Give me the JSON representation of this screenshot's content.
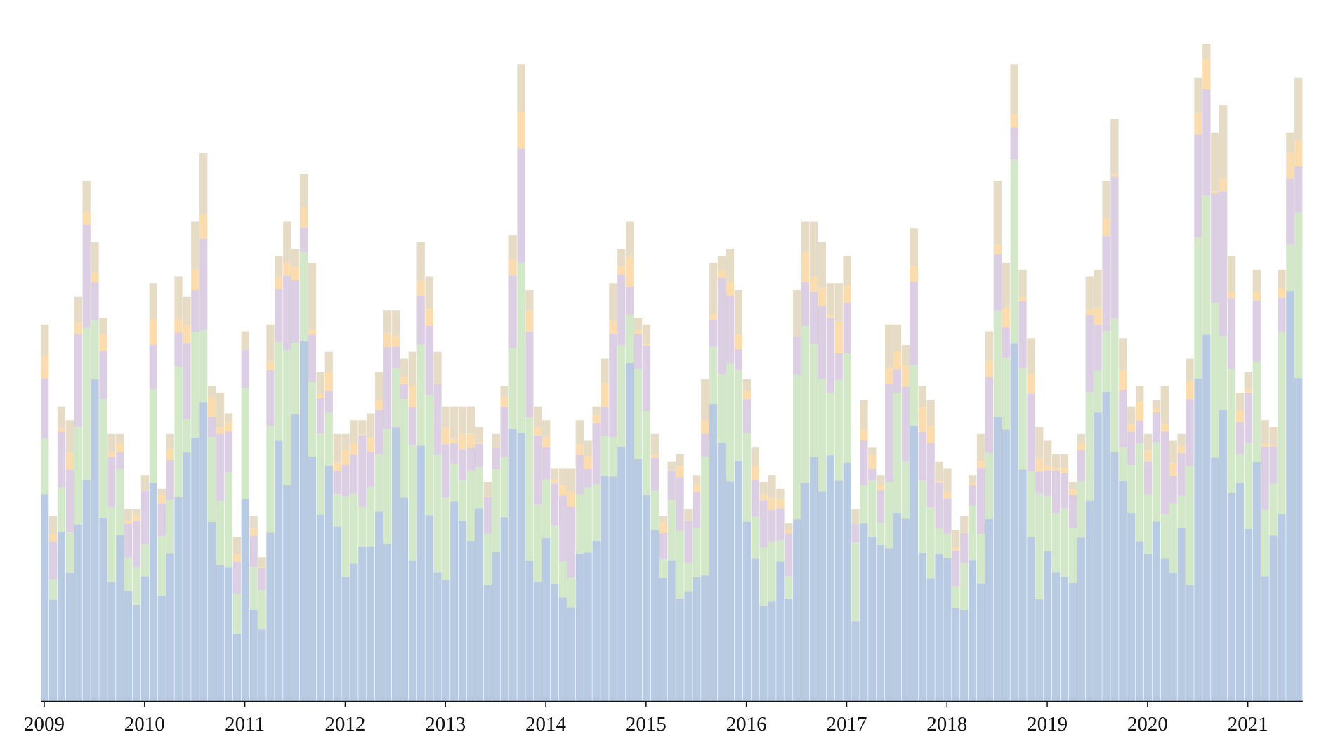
{
  "chart_data": {
    "type": "bar",
    "stacked": true,
    "x_tick_labels": [
      "2009",
      "2010",
      "2011",
      "2012",
      "2013",
      "2014",
      "2015",
      "2016",
      "2017",
      "2018",
      "2019",
      "2020",
      "2021"
    ],
    "x_range": [
      "2009-01",
      "2021-05"
    ],
    "y_axis_visible": false,
    "grid": false,
    "legend": "none",
    "series_colors": [
      "#b9cbe2",
      "#d3e8c9",
      "#dccfe4",
      "#fbdcae",
      "#e6dbc4"
    ],
    "totals": [
      55,
      27,
      43,
      41,
      59,
      76,
      67,
      56,
      39,
      39,
      28,
      28,
      33,
      61,
      31,
      39,
      62,
      59,
      70,
      80,
      46,
      45,
      42,
      24,
      54,
      27,
      21,
      55,
      65,
      70,
      66,
      77,
      64,
      48,
      51,
      39,
      39,
      41,
      41,
      42,
      48,
      57,
      57,
      50,
      51,
      67,
      62,
      51,
      43,
      43,
      43,
      43,
      40,
      32,
      39,
      46,
      68,
      93,
      60,
      43,
      41,
      34,
      34,
      34,
      41,
      38,
      43,
      50,
      61,
      66,
      70,
      56,
      55,
      39,
      27,
      35,
      36,
      28,
      33,
      47,
      64,
      65,
      66,
      60,
      47,
      37,
      32,
      33,
      31,
      26,
      60,
      70,
      70,
      67,
      61,
      61,
      65,
      28,
      44,
      37,
      33,
      55,
      55,
      52,
      69,
      46,
      44,
      35,
      34,
      25,
      27,
      33,
      39,
      54,
      76,
      64,
      93,
      63,
      53,
      40,
      38,
      36,
      36,
      32,
      39,
      62,
      63,
      76,
      85,
      53,
      43,
      46,
      39,
      44,
      46,
      38,
      39,
      50,
      91,
      96,
      83,
      87,
      65,
      45,
      48,
      63,
      41,
      40,
      63,
      83,
      91
    ]
  }
}
